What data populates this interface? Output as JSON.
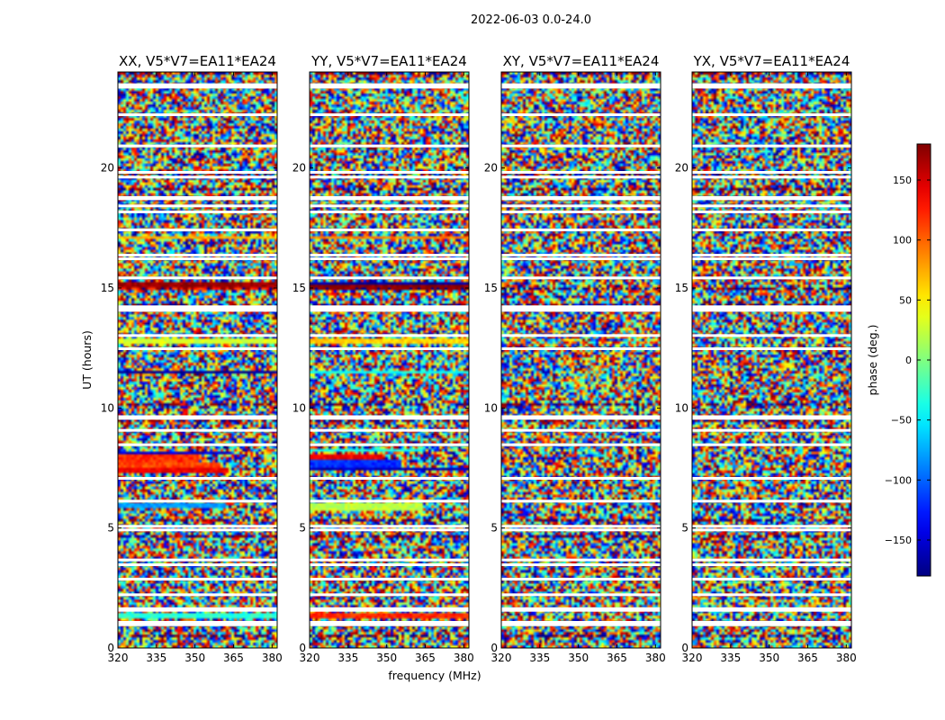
{
  "chart_data": {
    "type": "heatmap",
    "suptitle": "2022-06-03 0.0-24.0",
    "xlabel": "frequency (MHz)",
    "ylabel": "UT (hours)",
    "xlim": [
      320,
      382
    ],
    "ylim": [
      0,
      24
    ],
    "xticks": [
      320,
      335,
      350,
      365,
      380
    ],
    "yticks": [
      0,
      5,
      10,
      15,
      20
    ],
    "colorbar": {
      "label": "phase (deg.)",
      "range": [
        -180,
        180
      ],
      "ticks": [
        150,
        100,
        50,
        0,
        -50,
        -100,
        -150
      ],
      "tick_labels": [
        "150",
        "100",
        "50",
        "0",
        "−50",
        "−100",
        "−150"
      ],
      "colormap": "jet"
    },
    "panels": [
      {
        "title": "XX, V5*V7=EA11*EA24",
        "polarization": "XX",
        "coherent_bands": [
          {
            "t0": 7.25,
            "t1": 7.45,
            "phase": 140,
            "f_end": 363
          },
          {
            "t0": 7.45,
            "t1": 7.65,
            "phase": 110,
            "f_end": 360
          },
          {
            "t0": 7.65,
            "t1": 8.0,
            "phase": 120,
            "f_end": 352
          },
          {
            "t0": 8.0,
            "t1": 8.15,
            "phase": -150,
            "f_end": 364
          },
          {
            "t0": 5.75,
            "t1": 5.95,
            "phase": -80,
            "f_end": 362
          },
          {
            "t0": 11.35,
            "t1": 11.55,
            "phase": -170,
            "f_end": 382
          },
          {
            "t0": 12.65,
            "t1": 12.85,
            "phase": 30,
            "f_end": 382
          },
          {
            "t0": 14.9,
            "t1": 15.05,
            "phase": 120,
            "f_end": 382
          },
          {
            "t0": 15.05,
            "t1": 15.2,
            "phase": 170,
            "f_end": 382
          },
          {
            "t0": 17.0,
            "t1": 17.15,
            "phase": 70,
            "f_end": 382
          },
          {
            "t0": 1.2,
            "t1": 1.4,
            "phase": -30,
            "f_end": 382
          }
        ]
      },
      {
        "title": "YY, V5*V7=EA11*EA24",
        "polarization": "YY",
        "coherent_bands": [
          {
            "t0": 7.3,
            "t1": 7.5,
            "phase": -160,
            "f_end": 382
          },
          {
            "t0": 7.5,
            "t1": 7.75,
            "phase": -120,
            "f_end": 356
          },
          {
            "t0": 7.75,
            "t1": 8.0,
            "phase": 140,
            "f_end": 348
          },
          {
            "t0": 8.1,
            "t1": 8.3,
            "phase": -40,
            "f_end": 364
          },
          {
            "t0": 5.7,
            "t1": 5.95,
            "phase": 20,
            "f_end": 364
          },
          {
            "t0": 11.35,
            "t1": 11.55,
            "phase": -40,
            "f_end": 382
          },
          {
            "t0": 12.65,
            "t1": 12.85,
            "phase": 60,
            "f_end": 382
          },
          {
            "t0": 14.9,
            "t1": 15.1,
            "phase": 175,
            "f_end": 382
          },
          {
            "t0": 15.1,
            "t1": 15.25,
            "phase": -170,
            "f_end": 382
          },
          {
            "t0": 17.0,
            "t1": 17.15,
            "phase": 90,
            "f_end": 382
          },
          {
            "t0": 1.2,
            "t1": 1.4,
            "phase": 120,
            "f_end": 382
          }
        ]
      },
      {
        "title": "XY, V5*V7=EA11*EA24",
        "polarization": "XY",
        "coherent_bands": []
      },
      {
        "title": "YX, V5*V7=EA11*EA24",
        "polarization": "YX",
        "coherent_bands": []
      }
    ],
    "flagged_rows": [
      0.95,
      1.05,
      1.55,
      1.62,
      2.2,
      2.85,
      3.45,
      3.65,
      4.9,
      5.05,
      6.1,
      7.05,
      8.45,
      9.05,
      9.55,
      9.62,
      12.45,
      13.0,
      14.05,
      14.15,
      14.2,
      15.4,
      16.2,
      16.35,
      17.4,
      18.15,
      18.4,
      18.7,
      18.75,
      19.6,
      19.8,
      20.9,
      22.2,
      23.35,
      23.45
    ]
  }
}
